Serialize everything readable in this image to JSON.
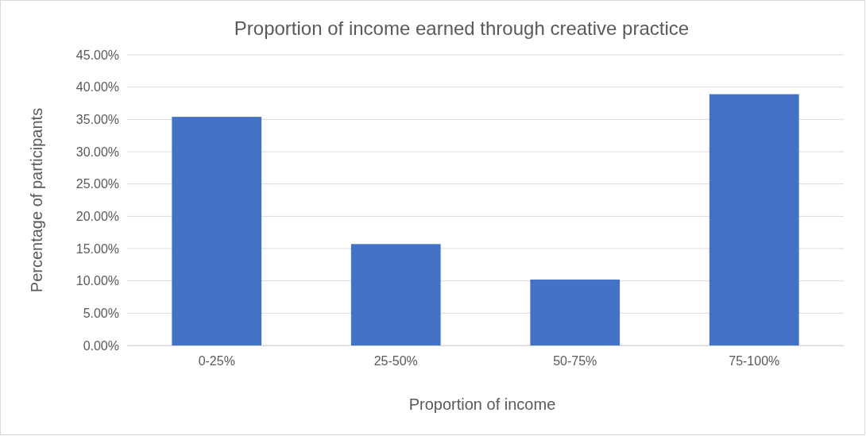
{
  "chart_data": {
    "type": "bar",
    "title": "Proportion of income earned through creative practice",
    "xlabel": "Proportion of income",
    "ylabel": "Percentage of participants",
    "categories": [
      "0-25%",
      "25-50%",
      "50-75%",
      "75-100%"
    ],
    "values": [
      35.4,
      15.7,
      10.2,
      38.9
    ],
    "color": "#4472c4",
    "ylim": [
      0,
      45
    ],
    "yticks": [
      {
        "value": 0,
        "label": "0.00%"
      },
      {
        "value": 5,
        "label": "5.00%"
      },
      {
        "value": 10,
        "label": "10.00%"
      },
      {
        "value": 15,
        "label": "15.00%"
      },
      {
        "value": 20,
        "label": "20.00%"
      },
      {
        "value": 25,
        "label": "25.00%"
      },
      {
        "value": 30,
        "label": "30.00%"
      },
      {
        "value": 35,
        "label": "35.00%"
      },
      {
        "value": 40,
        "label": "40.00%"
      },
      {
        "value": 45,
        "label": "45.00%"
      }
    ],
    "grid": "y"
  }
}
